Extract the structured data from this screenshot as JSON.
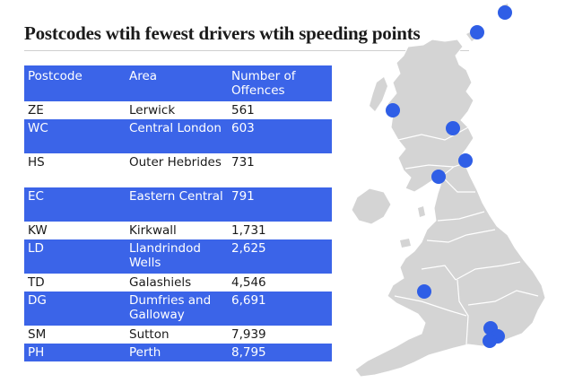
{
  "title": "Postcodes wtih fewest drivers wtih speeding points",
  "table": {
    "headers": [
      "Postcode",
      "Area",
      "Number of Offences"
    ],
    "rows": [
      {
        "postcode": "ZE",
        "area": "Lerwick",
        "offences": "561"
      },
      {
        "postcode": "WC",
        "area": "Central London",
        "offences": "603"
      },
      {
        "postcode": "HS",
        "area": "Outer Hebrides",
        "offences": "731"
      },
      {
        "postcode": "EC",
        "area": "Eastern Central",
        "offences": "791"
      },
      {
        "postcode": "KW",
        "area": "Kirkwall",
        "offences": "1,731"
      },
      {
        "postcode": "LD",
        "area": "Llandrindod Wells",
        "offences": "2,625"
      },
      {
        "postcode": "TD",
        "area": "Galashiels",
        "offences": "4,546"
      },
      {
        "postcode": "DG",
        "area": "Dumfries and Galloway",
        "offences": "6,691"
      },
      {
        "postcode": "SM",
        "area": "Sutton",
        "offences": "7,939"
      },
      {
        "postcode": "PH",
        "area": "Perth",
        "offences": "8,795"
      }
    ]
  },
  "colors": {
    "accent": "#3b64e8",
    "marker": "#2f5ee6",
    "land": "#d4d4d4",
    "border": "#ffffff"
  },
  "map": {
    "markers": [
      "ZE",
      "KW",
      "HS",
      "PH",
      "TD",
      "DG",
      "LD",
      "WC",
      "EC",
      "SM"
    ]
  }
}
